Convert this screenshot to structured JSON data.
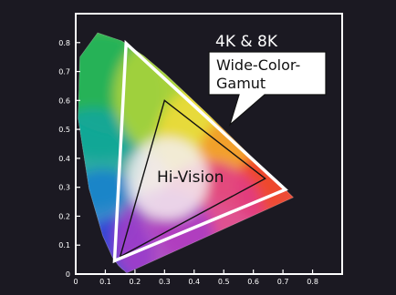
{
  "chart_data": {
    "type": "scatter",
    "title": "",
    "xlabel": "",
    "ylabel": "",
    "xlim": [
      0,
      0.9
    ],
    "ylim": [
      0,
      0.9
    ],
    "x_ticks": [
      "0",
      "0.1",
      "0.2",
      "0.3",
      "0.4",
      "0.5",
      "0.6",
      "0.7",
      "0.8"
    ],
    "y_ticks": [
      "0",
      "0.1",
      "0.2",
      "0.3",
      "0.4",
      "0.5",
      "0.6",
      "0.7",
      "0.8"
    ],
    "grid": false,
    "locus": [
      [
        0.175,
        0.005
      ],
      [
        0.174,
        0.005
      ],
      [
        0.17,
        0.005
      ],
      [
        0.165,
        0.011
      ],
      [
        0.157,
        0.017
      ],
      [
        0.144,
        0.03
      ],
      [
        0.124,
        0.058
      ],
      [
        0.091,
        0.133
      ],
      [
        0.045,
        0.295
      ],
      [
        0.008,
        0.538
      ],
      [
        0.014,
        0.75
      ],
      [
        0.074,
        0.834
      ],
      [
        0.155,
        0.806
      ],
      [
        0.23,
        0.754
      ],
      [
        0.302,
        0.692
      ],
      [
        0.373,
        0.624
      ],
      [
        0.444,
        0.555
      ],
      [
        0.512,
        0.487
      ],
      [
        0.575,
        0.424
      ],
      [
        0.627,
        0.372
      ],
      [
        0.666,
        0.334
      ],
      [
        0.692,
        0.308
      ],
      [
        0.735,
        0.265
      ]
    ],
    "series": [
      {
        "name": "4K & 8K Wide-Color-Gamut",
        "color": "#ffffff",
        "points": [
          [
            0.708,
            0.292
          ],
          [
            0.17,
            0.797
          ],
          [
            0.131,
            0.046
          ]
        ]
      },
      {
        "name": "Hi-Vision",
        "color": "#000000",
        "points": [
          [
            0.64,
            0.33
          ],
          [
            0.3,
            0.6
          ],
          [
            0.15,
            0.06
          ]
        ]
      }
    ],
    "annotations": {
      "uhd_line1": "4K & 8K",
      "uhd_line2": "Wide-Color-",
      "uhd_line3": "Gamut",
      "hd": "Hi-Vision"
    }
  },
  "colors": {
    "background": "#1b1922",
    "frame": "#ffffff",
    "uhd_triangle": "#ffffff",
    "hd_triangle": "#111111"
  }
}
